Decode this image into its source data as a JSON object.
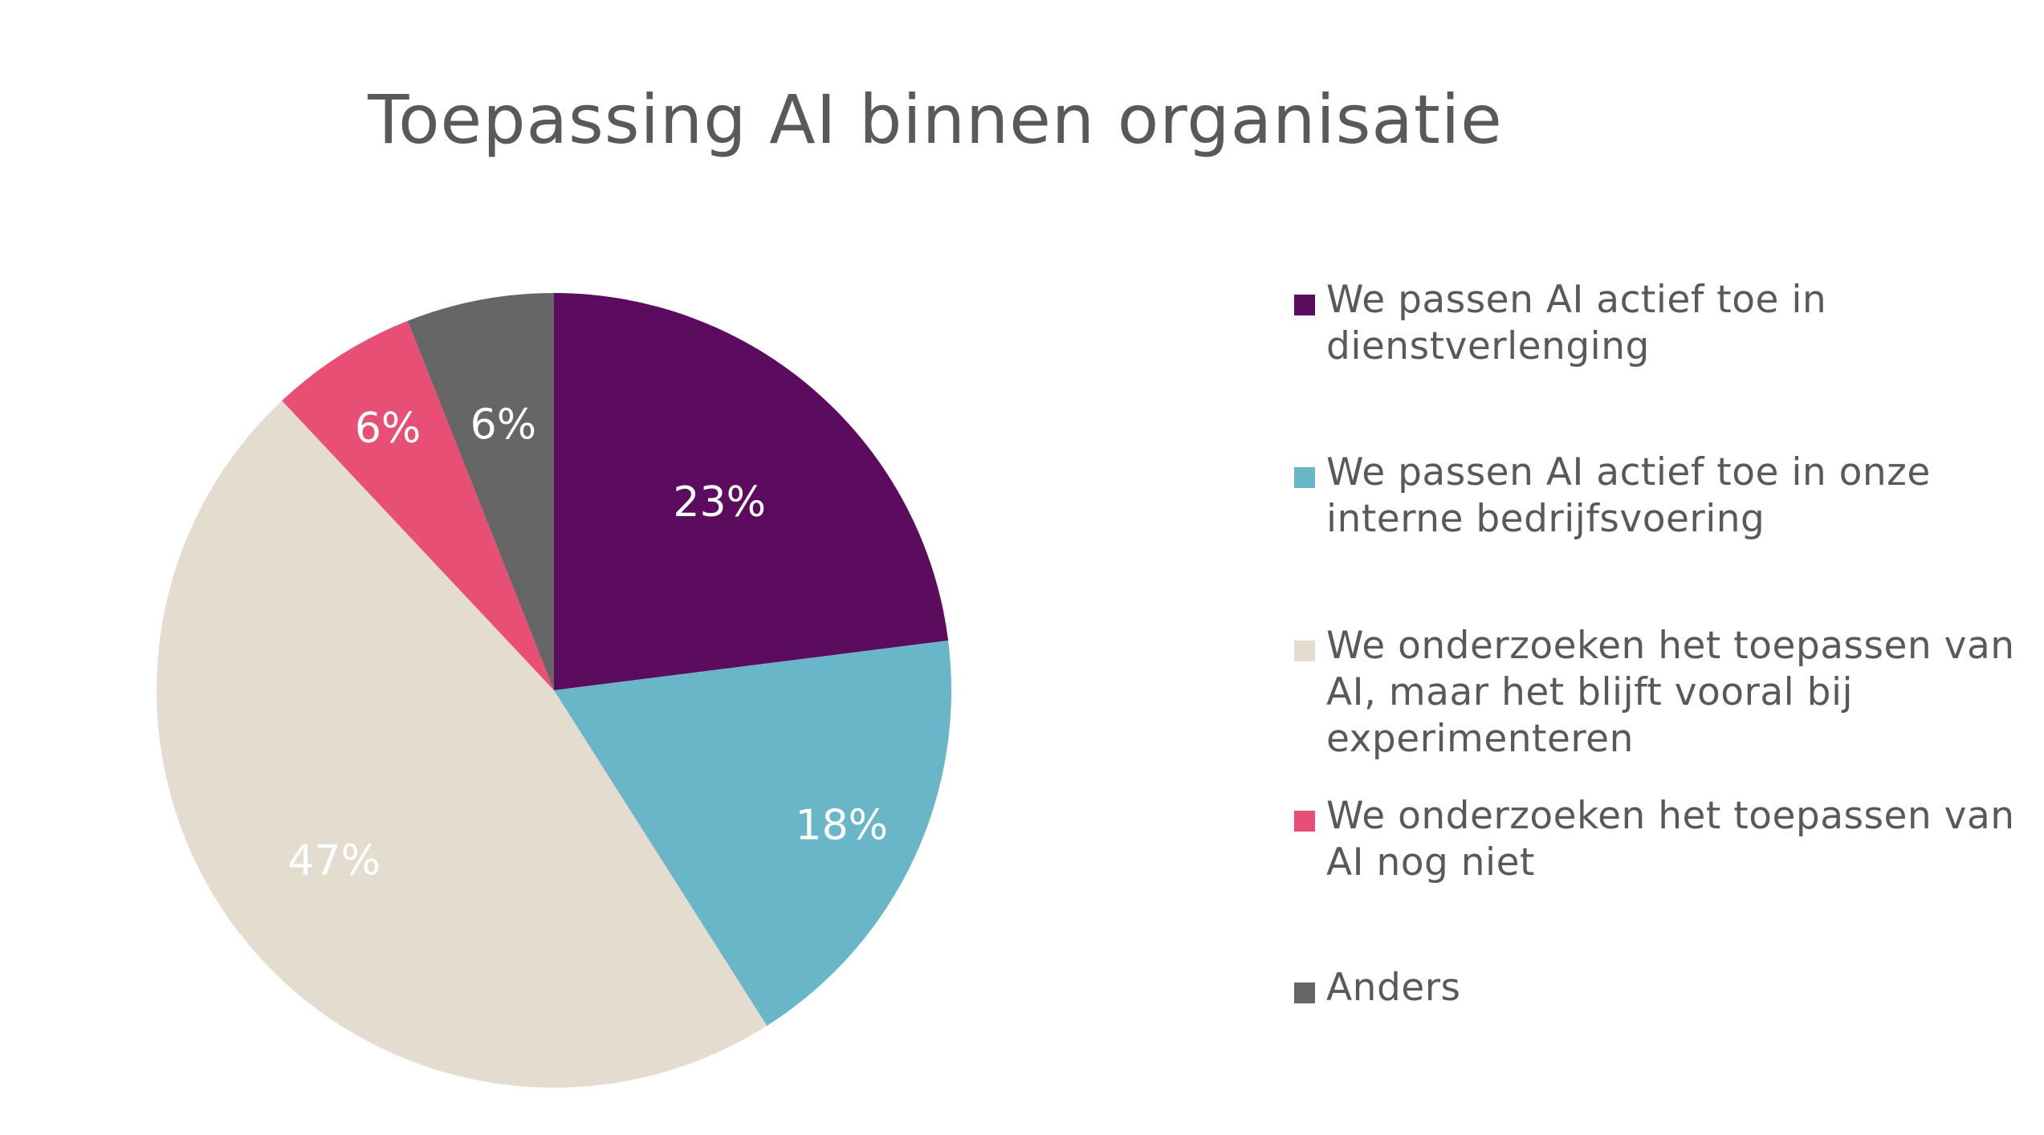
{
  "chart_data": {
    "type": "pie",
    "title": "Toepassing AI binnen organisatie",
    "slices": [
      {
        "label": "We passen AI actief toe in dienstverlenging",
        "value": 23,
        "value_label": "23%",
        "color": "#5c0c5e"
      },
      {
        "label": "We passen AI actief toe in onze interne bedrijfsvoering",
        "value": 18,
        "value_label": "18%",
        "color": "#69b6c8"
      },
      {
        "label": "We onderzoeken het toepassen van AI, maar het blijft vooral bij experimenteren",
        "value": 47,
        "value_label": "47%",
        "color": "#e4dcce"
      },
      {
        "label": "We onderzoeken het toepassen van AI nog niet",
        "value": 6,
        "value_label": "6%",
        "color": "#e84f75"
      },
      {
        "label": "Anders",
        "value": 6,
        "value_label": "6%",
        "color": "#666666"
      }
    ],
    "legend_position": "right"
  }
}
